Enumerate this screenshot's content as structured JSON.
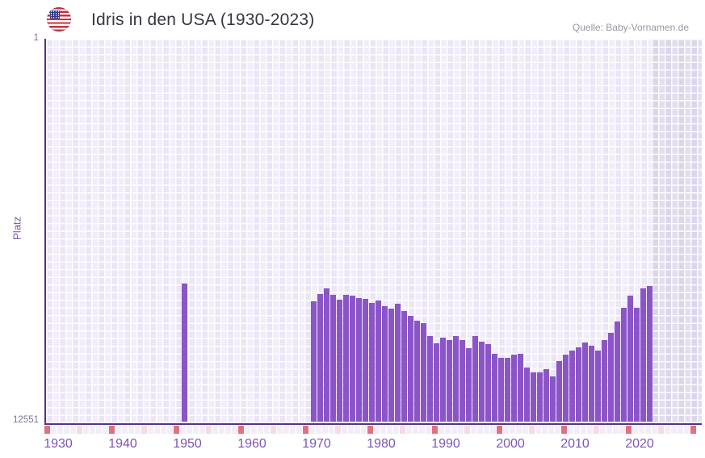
{
  "header": {
    "title": "Idris in den USA (1930-2023)",
    "source": "Quelle: Baby-Vornamen.de",
    "flag_icon": "us-flag-icon"
  },
  "y_axis": {
    "label": "Platz",
    "top_tick": "1",
    "bottom_tick": "12551"
  },
  "colors": {
    "bar": "#8b55c7",
    "axis": "#533188",
    "tick_decade": "#e1717f",
    "tick_half_decade": "#f5dbe2",
    "tick_default": "#f2eef9",
    "x_label": "#7b55b3",
    "future_region": "#dfd9ec",
    "plot_cell_a": "#ebe5f6",
    "plot_cell_b": "#f2edfa"
  },
  "chart_data": {
    "type": "bar",
    "title": "Idris in den USA (1930-2023)",
    "source_label": "Quelle: Baby-Vornamen.de",
    "ylabel": "Platz",
    "y_inverted": true,
    "ylim": [
      1,
      12551
    ],
    "y_tick_labels": [
      "1",
      "12551"
    ],
    "x_range_years": [
      1930,
      2030
    ],
    "x_tick_years": [
      1930,
      1940,
      1950,
      1960,
      1970,
      1980,
      1990,
      2000,
      2010,
      2020
    ],
    "future_years_start": 2024,
    "grid": true,
    "legend": false,
    "bars": [
      [
        1951,
        8040
      ],
      [
        1971,
        8620
      ],
      [
        1972,
        8380
      ],
      [
        1973,
        8210
      ],
      [
        1974,
        8420
      ],
      [
        1975,
        8580
      ],
      [
        1976,
        8400
      ],
      [
        1977,
        8450
      ],
      [
        1978,
        8510
      ],
      [
        1979,
        8550
      ],
      [
        1980,
        8690
      ],
      [
        1981,
        8600
      ],
      [
        1982,
        8780
      ],
      [
        1983,
        8870
      ],
      [
        1984,
        8710
      ],
      [
        1985,
        8930
      ],
      [
        1986,
        9110
      ],
      [
        1987,
        9260
      ],
      [
        1988,
        9350
      ],
      [
        1989,
        9760
      ],
      [
        1990,
        10010
      ],
      [
        1991,
        9830
      ],
      [
        1992,
        9900
      ],
      [
        1993,
        9760
      ],
      [
        1994,
        9910
      ],
      [
        1995,
        10160
      ],
      [
        1996,
        9760
      ],
      [
        1997,
        9940
      ],
      [
        1998,
        10030
      ],
      [
        1999,
        10350
      ],
      [
        2000,
        10470
      ],
      [
        2001,
        10470
      ],
      [
        2002,
        10380
      ],
      [
        2003,
        10350
      ],
      [
        2004,
        10790
      ],
      [
        2005,
        10970
      ],
      [
        2006,
        10970
      ],
      [
        2007,
        10860
      ],
      [
        2008,
        11100
      ],
      [
        2009,
        10600
      ],
      [
        2010,
        10380
      ],
      [
        2011,
        10230
      ],
      [
        2012,
        10140
      ],
      [
        2013,
        9990
      ],
      [
        2014,
        10090
      ],
      [
        2015,
        10230
      ],
      [
        2016,
        9900
      ],
      [
        2017,
        9650
      ],
      [
        2018,
        9300
      ],
      [
        2019,
        8840
      ],
      [
        2020,
        8430
      ],
      [
        2021,
        8840
      ],
      [
        2022,
        8200
      ],
      [
        2023,
        8120
      ]
    ]
  }
}
